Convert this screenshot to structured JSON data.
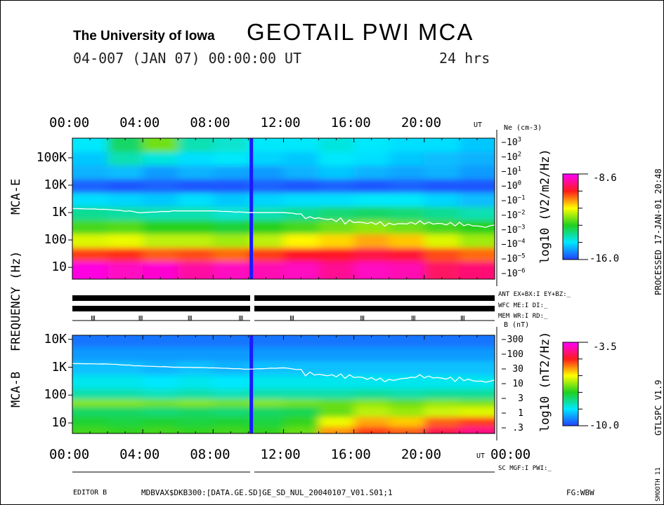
{
  "header": {
    "institution": "The University of Iowa",
    "title": "GEOTAIL PWI MCA",
    "date_line": "04-007 (JAN 07) 00:00:00 UT",
    "duration": "24 hrs"
  },
  "left_labels": {
    "frequency": "FREQUENCY (Hz)",
    "mca_e": "MCA-E",
    "mca_b": "MCA-B"
  },
  "right_labels": {
    "processed": "PROCESSED 17-JAN-01  20:48",
    "version": "GTLSPC   V1.9",
    "smooth": "SMOOTH 11"
  },
  "status": {
    "ant": "ANT EX+BX:I  EY+BZ:_",
    "wfc": "WFC ME:I      DI:_",
    "mem": "MEM WR:I      RD:_",
    "sc": "SC MGF:I     PWI:_"
  },
  "footer": {
    "editor": "EDITOR B",
    "file": "MDBVAX$DKB300:[DATA.GE.SD]GE_SD_NUL_20040107_V01.S01;1",
    "fg": "FG:WBW"
  },
  "chart_data": [
    {
      "type": "heatmap",
      "name": "MCA-E",
      "ylabel": "FREQUENCY (Hz)",
      "yscale": "log",
      "ylim": [
        3.7,
        520000
      ],
      "x_ticks": [
        "00:00",
        "04:00",
        "08:00",
        "12:00",
        "16:00",
        "20:00"
      ],
      "x_unit": "UT",
      "xlim_hours": [
        0,
        24
      ],
      "y_ticks": [
        "100K",
        "10K",
        "1K",
        "100",
        "10"
      ],
      "y_tick_values": [
        100000,
        10000,
        1000,
        100,
        10
      ],
      "right_axis": {
        "label": "Ne (cm-3)",
        "ticks": [
          "10^3",
          "10^2",
          "10^1",
          "10^0",
          "10^-1",
          "10^-2",
          "10^-3",
          "10^-4",
          "10^-5",
          "10^-6"
        ]
      },
      "colorbar": {
        "label": "log10 (V2/m2/Hz)",
        "max": "-8.6",
        "min": "-16.0",
        "range": [
          -16.0,
          -8.6
        ]
      },
      "data_gap_hours": 10.15,
      "time_bins_hours": [
        0,
        2,
        4,
        6,
        8,
        10,
        12,
        14,
        16,
        18,
        20,
        22
      ],
      "freq_bands_hz": [
        10,
        30,
        100,
        300,
        1000,
        3000,
        10000,
        30000,
        100000,
        300000
      ],
      "values": [
        [
          -8.8,
          -9.0,
          -8.9,
          -9.2,
          -9.0,
          -9.1,
          -9.0,
          -9.3,
          -9.0,
          -9.1,
          -9.6,
          -9.5
        ],
        [
          -10.3,
          -10.2,
          -10.5,
          -10.4,
          -10.6,
          -10.3,
          -10.0,
          -10.0,
          -9.8,
          -9.9,
          -10.4,
          -10.6
        ],
        [
          -11.8,
          -11.7,
          -12.0,
          -12.0,
          -12.2,
          -12.0,
          -11.5,
          -11.3,
          -11.0,
          -11.2,
          -11.8,
          -12.2
        ],
        [
          -12.8,
          -12.7,
          -13.0,
          -13.0,
          -13.2,
          -13.0,
          -12.8,
          -12.5,
          -12.3,
          -12.5,
          -12.8,
          -13.0
        ],
        [
          -13.8,
          -13.9,
          -14.0,
          -14.0,
          -14.2,
          -14.0,
          -13.8,
          -13.6,
          -13.5,
          -13.6,
          -13.8,
          -14.0
        ],
        [
          -14.6,
          -14.7,
          -14.8,
          -14.6,
          -14.8,
          -14.7,
          -14.6,
          -14.6,
          -14.5,
          -14.5,
          -14.7,
          -14.9
        ],
        [
          -15.7,
          -15.8,
          -15.7,
          -15.8,
          -15.8,
          -15.7,
          -15.8,
          -15.7,
          -15.8,
          -15.7,
          -15.8,
          -15.8
        ],
        [
          -15.0,
          -14.9,
          -15.2,
          -15.0,
          -15.1,
          -15.2,
          -15.0,
          -14.8,
          -15.0,
          -15.1,
          -15.0,
          -15.2
        ],
        [
          -14.8,
          -14.0,
          -14.3,
          -14.6,
          -14.5,
          -14.7,
          -14.8,
          -14.5,
          -14.6,
          -14.8,
          -14.9,
          -15.0
        ],
        [
          -14.5,
          -13.5,
          -12.5,
          -14.0,
          -14.2,
          -14.5,
          -14.5,
          -14.3,
          -14.5,
          -14.6,
          -14.6,
          -14.8
        ]
      ],
      "line": {
        "name": "density line",
        "hours": [
          0,
          2,
          4,
          6,
          8,
          10,
          12,
          14,
          16,
          18,
          20,
          22,
          24
        ],
        "freq_hz": [
          1400,
          1300,
          1000,
          1150,
          1150,
          1000,
          1000,
          750,
          550,
          450,
          500,
          450,
          350
        ]
      }
    },
    {
      "type": "heatmap",
      "name": "MCA-B",
      "ylabel": "FREQUENCY (Hz)",
      "yscale": "log",
      "ylim": [
        4.2,
        14000
      ],
      "x_ticks": [
        "00:00",
        "04:00",
        "08:00",
        "12:00",
        "16:00",
        "20:00",
        "00:00"
      ],
      "x_unit": "UT",
      "xlim_hours": [
        0,
        24
      ],
      "y_ticks": [
        "10K",
        "1K",
        "100",
        "10"
      ],
      "y_tick_values": [
        10000,
        1000,
        100,
        10
      ],
      "right_axis": {
        "label": "B (nT)",
        "ticks": [
          "300",
          "100",
          "30",
          "10",
          "3",
          "1",
          ".3"
        ]
      },
      "colorbar": {
        "label": "log10 (nT2/Hz)",
        "max": "-3.5",
        "min": "-10.0",
        "range": [
          -10.0,
          -3.5
        ]
      },
      "data_gap_hours": 10.15,
      "time_bins_hours": [
        0,
        2,
        4,
        6,
        8,
        10,
        12,
        14,
        16,
        18,
        20,
        22
      ],
      "freq_bands_hz": [
        6,
        10,
        30,
        56,
        100,
        300,
        1000,
        3000,
        10000
      ],
      "values": [
        [
          -7.2,
          -7.3,
          -7.2,
          -7.3,
          -7.2,
          -7.3,
          -7.0,
          -5.5,
          -5.0,
          -5.2,
          -4.5,
          -4.2
        ],
        [
          -7.5,
          -7.6,
          -7.5,
          -7.6,
          -7.5,
          -7.6,
          -7.3,
          -6.2,
          -5.6,
          -5.8,
          -5.2,
          -5.0
        ],
        [
          -7.8,
          -7.8,
          -7.9,
          -7.8,
          -7.9,
          -7.8,
          -7.7,
          -7.0,
          -6.5,
          -6.7,
          -6.4,
          -6.3
        ],
        [
          -6.8,
          -6.8,
          -6.9,
          -6.8,
          -6.9,
          -6.8,
          -6.9,
          -7.0,
          -6.8,
          -7.0,
          -6.8,
          -6.9
        ],
        [
          -8.2,
          -8.2,
          -8.3,
          -8.2,
          -8.3,
          -8.2,
          -8.2,
          -8.2,
          -8.1,
          -8.2,
          -8.1,
          -8.1
        ],
        [
          -8.6,
          -8.6,
          -8.7,
          -8.6,
          -8.7,
          -8.6,
          -8.6,
          -8.6,
          -8.6,
          -8.6,
          -8.6,
          -8.6
        ],
        [
          -9.0,
          -9.0,
          -9.1,
          -9.0,
          -9.1,
          -9.0,
          -9.0,
          -9.0,
          -9.0,
          -9.0,
          -9.0,
          -9.0
        ],
        [
          -9.3,
          -9.3,
          -9.3,
          -9.3,
          -9.3,
          -9.3,
          -9.3,
          -9.3,
          -9.3,
          -9.3,
          -9.3,
          -9.3
        ],
        [
          -9.6,
          -9.6,
          -9.6,
          -9.6,
          -9.6,
          -9.6,
          -9.6,
          -9.6,
          -9.6,
          -9.6,
          -9.6,
          -9.6
        ]
      ],
      "line": {
        "name": "cyclotron line",
        "hours": [
          0,
          2,
          4,
          6,
          8,
          10,
          12,
          14,
          16,
          18,
          20,
          22,
          24
        ],
        "freq_hz": [
          1350,
          1300,
          1100,
          1000,
          950,
          850,
          950,
          650,
          550,
          400,
          550,
          450,
          350
        ]
      }
    }
  ],
  "colors": {
    "gap": "#1a1aff",
    "line": "#ffffff"
  }
}
